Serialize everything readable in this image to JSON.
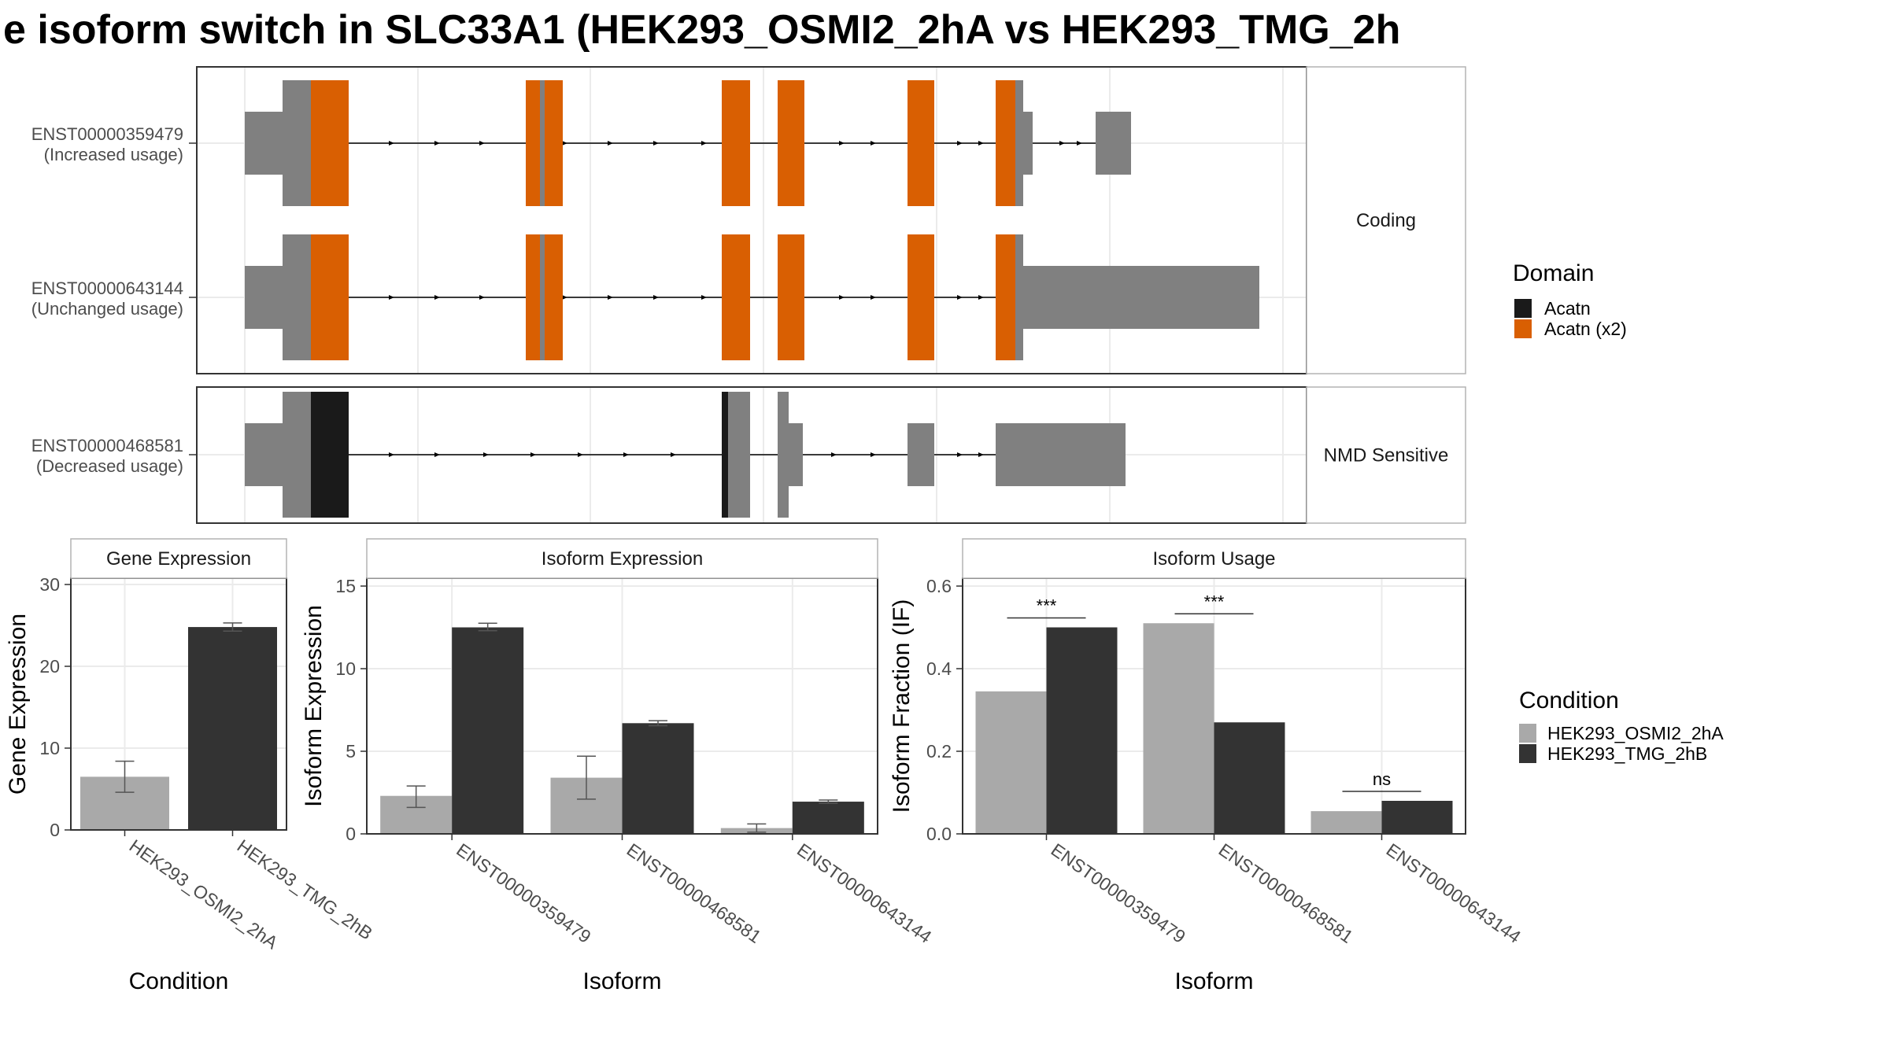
{
  "title": "e isoform switch in SLC33A1 (HEK293_OSMI2_2hA vs HEK293_TMG_2h",
  "colors": {
    "exon_gray": "#808080",
    "domain_black": "#1a1a1a",
    "domain_orange": "#d95f02",
    "cond_a": "#a9a9a9",
    "cond_b": "#333333",
    "panel_border": "#333333",
    "strip_border": "#b3b3b3",
    "grid": "#ebebeb"
  },
  "structure": {
    "facets": [
      {
        "label": "Coding",
        "tracks": [
          {
            "id": "ENST00000359479",
            "sub": "(Increased usage)"
          },
          {
            "id": "ENST00000643144",
            "sub": "(Unchanged usage)"
          }
        ]
      },
      {
        "label": "NMD Sensitive",
        "tracks": [
          {
            "id": "ENST00000468581",
            "sub": "(Decreased usage)"
          }
        ]
      }
    ],
    "domain_legend": {
      "title": "Domain",
      "items": [
        {
          "label": "Acatn",
          "color": "#1a1a1a"
        },
        {
          "label": "Acatn (x2)",
          "color": "#d95f02"
        }
      ]
    }
  },
  "condition_legend": {
    "title": "Condition",
    "items": [
      {
        "label": "HEK293_OSMI2_2hA",
        "color": "#a9a9a9"
      },
      {
        "label": "HEK293_TMG_2hB",
        "color": "#333333"
      }
    ]
  },
  "chart_data": [
    {
      "type": "bar",
      "title": "Gene Expression",
      "xlabel": "Condition",
      "ylabel": "Gene Expression",
      "ylim": [
        0,
        30
      ],
      "yticks": [
        0,
        10,
        20,
        30
      ],
      "categories": [
        "HEK293_OSMI2_2hA",
        "HEK293_TMG_2hB"
      ],
      "values": [
        6.5,
        24.8
      ],
      "error_low": [
        4.6,
        24.3
      ],
      "error_high": [
        8.4,
        25.3
      ]
    },
    {
      "type": "bar",
      "title": "Isoform Expression",
      "xlabel": "Isoform",
      "ylabel": "Isoform Expression",
      "ylim": [
        0,
        15
      ],
      "yticks": [
        0,
        5,
        10,
        15
      ],
      "categories": [
        "ENST00000359479",
        "ENST00000468581",
        "ENST00000643144"
      ],
      "series": [
        {
          "name": "HEK293_OSMI2_2hA",
          "values": [
            2.3,
            3.4,
            0.35
          ],
          "error_low": [
            1.6,
            2.1,
            0.1
          ],
          "error_high": [
            2.9,
            4.7,
            0.6
          ]
        },
        {
          "name": "HEK293_TMG_2hB",
          "values": [
            12.5,
            6.7,
            1.95
          ],
          "error_low": [
            12.3,
            6.55,
            1.85
          ],
          "error_high": [
            12.75,
            6.85,
            2.05
          ]
        }
      ]
    },
    {
      "type": "bar",
      "title": "Isoform Usage",
      "xlabel": "Isoform",
      "ylabel": "Isoform Fraction (IF)",
      "ylim": [
        0,
        0.6
      ],
      "yticks": [
        "0.0",
        "0.2",
        "0.4",
        "0.6"
      ],
      "categories": [
        "ENST00000359479",
        "ENST00000468581",
        "ENST00000643144"
      ],
      "series": [
        {
          "name": "HEK293_OSMI2_2hA",
          "values": [
            0.345,
            0.51,
            0.055
          ]
        },
        {
          "name": "HEK293_TMG_2hB",
          "values": [
            0.5,
            0.27,
            0.08
          ]
        }
      ],
      "significance": [
        "***",
        "***",
        "ns"
      ]
    }
  ]
}
